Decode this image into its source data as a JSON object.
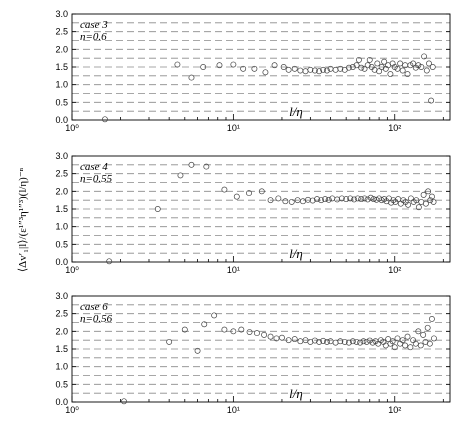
{
  "figure": {
    "ylabel": "⟨Δv′₁|l⟩/(ε¹″³η¹″³)(l/η)⁻ⁿ"
  },
  "chart_data": [
    {
      "type": "scatter",
      "title": "",
      "annotation": [
        "case 3",
        "n=0.6"
      ],
      "xlabel": "l/η",
      "ylabel": "",
      "x_scale": "log",
      "xlim": [
        1,
        220
      ],
      "ylim": [
        0,
        3
      ],
      "x_ticks": [
        "10⁰",
        "10¹",
        "10²"
      ],
      "y_ticks": [
        "0.0",
        "0.5",
        "1.0",
        "1.5",
        "2.0",
        "2.5",
        "3.0"
      ],
      "grid": "horizontal-dashed",
      "points": [
        [
          1.6,
          0.02
        ],
        [
          4.5,
          1.57
        ],
        [
          5.5,
          1.2
        ],
        [
          6.5,
          1.5
        ],
        [
          8.2,
          1.55
        ],
        [
          10,
          1.57
        ],
        [
          11.5,
          1.45
        ],
        [
          13.5,
          1.45
        ],
        [
          15.8,
          1.35
        ],
        [
          18,
          1.55
        ],
        [
          20.5,
          1.5
        ],
        [
          22,
          1.42
        ],
        [
          24,
          1.45
        ],
        [
          26,
          1.4
        ],
        [
          28,
          1.38
        ],
        [
          30,
          1.42
        ],
        [
          32,
          1.4
        ],
        [
          34,
          1.38
        ],
        [
          36,
          1.42
        ],
        [
          38,
          1.4
        ],
        [
          40,
          1.45
        ],
        [
          43,
          1.42
        ],
        [
          46,
          1.45
        ],
        [
          49,
          1.42
        ],
        [
          52,
          1.48
        ],
        [
          55,
          1.5
        ],
        [
          58,
          1.55
        ],
        [
          60,
          1.7
        ],
        [
          62,
          1.48
        ],
        [
          65,
          1.45
        ],
        [
          68,
          1.55
        ],
        [
          70,
          1.7
        ],
        [
          72,
          1.5
        ],
        [
          75,
          1.42
        ],
        [
          78,
          1.6
        ],
        [
          80,
          1.38
        ],
        [
          83,
          1.5
        ],
        [
          86,
          1.65
        ],
        [
          88,
          1.45
        ],
        [
          91,
          1.55
        ],
        [
          94,
          1.3
        ],
        [
          97,
          1.6
        ],
        [
          100,
          1.5
        ],
        [
          104,
          1.45
        ],
        [
          108,
          1.6
        ],
        [
          112,
          1.4
        ],
        [
          116,
          1.55
        ],
        [
          120,
          1.3
        ],
        [
          125,
          1.55
        ],
        [
          130,
          1.6
        ],
        [
          135,
          1.48
        ],
        [
          140,
          1.55
        ],
        [
          146,
          1.5
        ],
        [
          152,
          1.8
        ],
        [
          158,
          1.4
        ],
        [
          163,
          1.6
        ],
        [
          168,
          0.55
        ],
        [
          172,
          1.5
        ]
      ]
    },
    {
      "type": "scatter",
      "title": "",
      "annotation": [
        "case 4",
        "n=0.55"
      ],
      "xlabel": "l/η",
      "ylabel": "",
      "x_scale": "log",
      "xlim": [
        1,
        220
      ],
      "ylim": [
        0,
        3
      ],
      "x_ticks": [
        "10⁰",
        "10¹",
        "10²"
      ],
      "y_ticks": [
        "0.0",
        "0.5",
        "1.0",
        "1.5",
        "2.0",
        "2.5",
        "3.0"
      ],
      "grid": "horizontal-dashed",
      "points": [
        [
          1.7,
          0.02
        ],
        [
          3.4,
          1.5
        ],
        [
          4.7,
          2.45
        ],
        [
          5.5,
          2.75
        ],
        [
          6.8,
          2.7
        ],
        [
          8.8,
          2.05
        ],
        [
          10.5,
          1.85
        ],
        [
          12.5,
          1.95
        ],
        [
          15,
          2.0
        ],
        [
          17,
          1.75
        ],
        [
          19,
          1.8
        ],
        [
          21,
          1.72
        ],
        [
          23,
          1.7
        ],
        [
          25,
          1.75
        ],
        [
          27,
          1.72
        ],
        [
          29,
          1.76
        ],
        [
          31,
          1.74
        ],
        [
          33,
          1.78
        ],
        [
          35,
          1.75
        ],
        [
          37,
          1.78
        ],
        [
          39,
          1.76
        ],
        [
          41,
          1.8
        ],
        [
          44,
          1.77
        ],
        [
          47,
          1.8
        ],
        [
          50,
          1.78
        ],
        [
          53,
          1.8
        ],
        [
          56,
          1.77
        ],
        [
          59,
          1.8
        ],
        [
          62,
          1.78
        ],
        [
          65,
          1.8
        ],
        [
          68,
          1.77
        ],
        [
          71,
          1.82
        ],
        [
          74,
          1.78
        ],
        [
          77,
          1.76
        ],
        [
          80,
          1.8
        ],
        [
          83,
          1.75
        ],
        [
          86,
          1.78
        ],
        [
          89,
          1.72
        ],
        [
          92,
          1.8
        ],
        [
          95,
          1.68
        ],
        [
          98,
          1.75
        ],
        [
          101,
          1.7
        ],
        [
          105,
          1.78
        ],
        [
          109,
          1.65
        ],
        [
          113,
          1.75
        ],
        [
          117,
          1.7
        ],
        [
          121,
          1.62
        ],
        [
          126,
          1.8
        ],
        [
          131,
          1.7
        ],
        [
          136,
          1.75
        ],
        [
          141,
          1.55
        ],
        [
          146,
          1.7
        ],
        [
          151,
          1.9
        ],
        [
          156,
          1.65
        ],
        [
          161,
          2.0
        ],
        [
          166,
          1.75
        ],
        [
          170,
          1.85
        ],
        [
          174,
          1.7
        ]
      ]
    },
    {
      "type": "scatter",
      "title": "",
      "annotation": [
        "case 6",
        "n=0.56"
      ],
      "xlabel": "l/η",
      "ylabel": "",
      "x_scale": "log",
      "xlim": [
        1,
        220
      ],
      "ylim": [
        0,
        3
      ],
      "x_ticks": [
        "10⁰",
        "10¹",
        "10²"
      ],
      "y_ticks": [
        "0.0",
        "0.5",
        "1.0",
        "1.5",
        "2.0",
        "2.5",
        "3.0"
      ],
      "grid": "horizontal-dashed",
      "points": [
        [
          2.1,
          0.02
        ],
        [
          4.0,
          1.7
        ],
        [
          5.0,
          2.05
        ],
        [
          6.0,
          1.45
        ],
        [
          6.6,
          2.2
        ],
        [
          7.6,
          2.45
        ],
        [
          8.8,
          2.05
        ],
        [
          10,
          2.0
        ],
        [
          11.2,
          2.05
        ],
        [
          12.6,
          1.98
        ],
        [
          14,
          1.95
        ],
        [
          15.5,
          1.9
        ],
        [
          17,
          1.85
        ],
        [
          18.5,
          1.8
        ],
        [
          20,
          1.82
        ],
        [
          22,
          1.75
        ],
        [
          24,
          1.78
        ],
        [
          26,
          1.72
        ],
        [
          28,
          1.75
        ],
        [
          30,
          1.7
        ],
        [
          32,
          1.74
        ],
        [
          34,
          1.7
        ],
        [
          36,
          1.73
        ],
        [
          38,
          1.7
        ],
        [
          40,
          1.72
        ],
        [
          43,
          1.68
        ],
        [
          46,
          1.72
        ],
        [
          49,
          1.7
        ],
        [
          52,
          1.68
        ],
        [
          55,
          1.72
        ],
        [
          58,
          1.7
        ],
        [
          61,
          1.68
        ],
        [
          64,
          1.72
        ],
        [
          67,
          1.7
        ],
        [
          70,
          1.74
        ],
        [
          73,
          1.68
        ],
        [
          76,
          1.72
        ],
        [
          79,
          1.65
        ],
        [
          82,
          1.75
        ],
        [
          85,
          1.7
        ],
        [
          88,
          1.6
        ],
        [
          91,
          1.78
        ],
        [
          94,
          1.65
        ],
        [
          97,
          1.72
        ],
        [
          100,
          1.55
        ],
        [
          104,
          1.8
        ],
        [
          108,
          1.65
        ],
        [
          112,
          1.75
        ],
        [
          116,
          1.6
        ],
        [
          120,
          1.85
        ],
        [
          125,
          1.55
        ],
        [
          130,
          1.75
        ],
        [
          135,
          1.65
        ],
        [
          140,
          2.0
        ],
        [
          145,
          1.6
        ],
        [
          150,
          1.9
        ],
        [
          155,
          1.7
        ],
        [
          160,
          2.1
        ],
        [
          165,
          1.65
        ],
        [
          170,
          2.35
        ],
        [
          175,
          1.8
        ]
      ]
    }
  ]
}
